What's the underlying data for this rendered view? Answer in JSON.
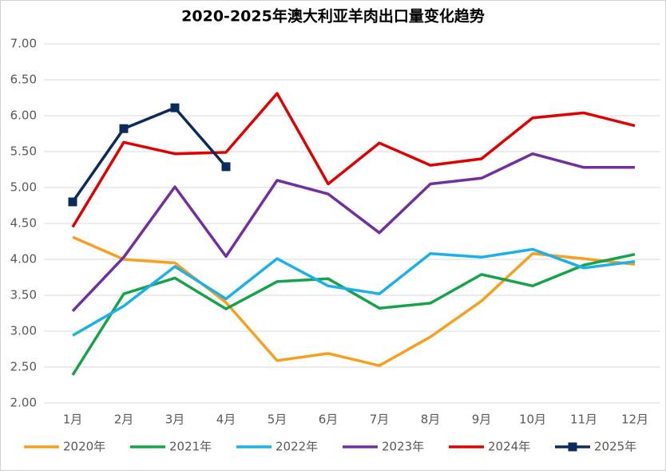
{
  "chart_data": {
    "type": "line",
    "title": "2020-2025年澳大利亚羊肉出口量变化趋势",
    "categories": [
      "1月",
      "2月",
      "3月",
      "4月",
      "5月",
      "6月",
      "7月",
      "8月",
      "9月",
      "10月",
      "11月",
      "12月"
    ],
    "series": [
      {
        "name": "2020年",
        "color": "#f5a01f",
        "values": [
          4.31,
          4.0,
          3.95,
          3.4,
          2.59,
          2.69,
          2.52,
          2.92,
          3.42,
          4.08,
          4.01,
          3.93
        ]
      },
      {
        "name": "2021年",
        "color": "#16a34a",
        "values": [
          2.39,
          3.52,
          3.74,
          3.31,
          3.69,
          3.73,
          3.32,
          3.39,
          3.79,
          3.63,
          3.92,
          4.07
        ]
      },
      {
        "name": "2022年",
        "color": "#1cb0e8",
        "values": [
          2.94,
          3.35,
          3.9,
          3.45,
          4.01,
          3.63,
          3.52,
          4.08,
          4.03,
          4.14,
          3.88,
          3.97
        ]
      },
      {
        "name": "2023年",
        "color": "#7030a0",
        "values": [
          3.28,
          4.03,
          5.01,
          4.04,
          5.1,
          4.91,
          4.37,
          5.05,
          5.13,
          5.47,
          5.28,
          5.28
        ]
      },
      {
        "name": "2024年",
        "color": "#e00000",
        "values": [
          4.45,
          5.63,
          5.47,
          5.49,
          6.31,
          5.05,
          5.62,
          5.31,
          5.4,
          5.97,
          6.04,
          5.86
        ]
      },
      {
        "name": "2025年",
        "color": "#0c2a5c",
        "marker": "square",
        "values": [
          4.8,
          5.82,
          6.11,
          5.29,
          null,
          null,
          null,
          null,
          null,
          null,
          null,
          null
        ]
      }
    ],
    "ylim": [
      2,
      7
    ],
    "yticks": [
      {
        "value": 2,
        "label": "2.00"
      },
      {
        "value": 2.5,
        "label": "2.50"
      },
      {
        "value": 3,
        "label": "3.00"
      },
      {
        "value": 3.5,
        "label": "3.50"
      },
      {
        "value": 4,
        "label": "4.00"
      },
      {
        "value": 4.5,
        "label": "4.50"
      },
      {
        "value": 5,
        "label": "5.00"
      },
      {
        "value": 5.5,
        "label": "5.50"
      },
      {
        "value": 6,
        "label": "6.00"
      },
      {
        "value": 6.5,
        "label": "6.50"
      },
      {
        "value": 7,
        "label": "7.00"
      }
    ],
    "grid": true,
    "legend": "bottom"
  }
}
